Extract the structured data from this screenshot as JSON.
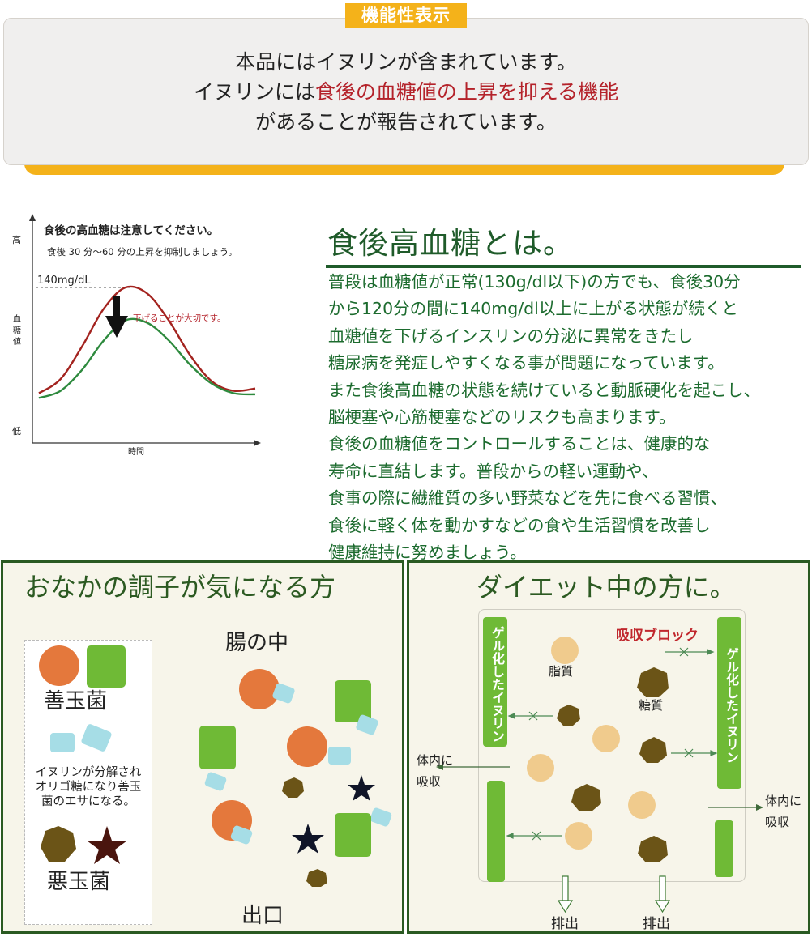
{
  "banner": {
    "tag": "機能性表示",
    "line1": "本品にはイヌリンが含まれています。",
    "line2_prefix": "イヌリンには",
    "line2_highlight": "食後の血糖値の上昇を抑える機能",
    "line3": "があることが報告されています。",
    "highlight_color": "#b4222a",
    "accent_color": "#f4b21a"
  },
  "chart": {
    "heading1": "食後の高血糖は注意してください。",
    "heading2": "食後 30 分〜60 分の上昇を抑制しましょう。",
    "y_high": "高",
    "y_label": "血\n糖\n値",
    "y_low": "低",
    "x_label": "時間",
    "threshold_label": "140mg/dL",
    "arrow_note": "下げることが大切です。"
  },
  "chart_data": {
    "type": "line",
    "xlabel": "時間",
    "ylabel": "血糖値",
    "series": [
      {
        "color": "#a3231f",
        "values": [
          0.1,
          0.22,
          0.5,
          0.82,
          1.0,
          0.95,
          0.72,
          0.42,
          0.2,
          0.12,
          0.14
        ]
      },
      {
        "color": "#2e8a3e",
        "values": [
          0.06,
          0.12,
          0.3,
          0.55,
          0.72,
          0.7,
          0.55,
          0.34,
          0.18,
          0.1,
          0.09
        ]
      }
    ],
    "annotations": [
      "140mg/dL",
      "下げることが大切です。"
    ]
  },
  "article": {
    "title": "食後高血糖とは。",
    "lines": [
      "普段は血糖値が正常(130g/dl以下)の方でも、食後30分",
      "から120分の間に140mg/dl以上に上がる状態が続くと",
      "血糖値を下げるインスリンの分泌に異常をきたし",
      "糖尿病を発症しやすくなる事が問題になっています。",
      "また食後高血糖の状態を続けていると動脈硬化を起こし、",
      "脳梗塞や心筋梗塞などのリスクも高まります。",
      "食後の血糖値をコントロールすることは、健康的な",
      "寿命に直結します。普段からの軽い運動や、",
      "食事の際に繊維質の多い野菜などを先に食べる習慣、",
      "食後に軽く体を動かすなどの食や生活習慣を改善し",
      "健康維持に努めましょう。"
    ],
    "text_color": "#1c6b2e"
  },
  "left_panel": {
    "title": "おなかの調子が気になる方",
    "good": "善玉菌",
    "inulin_note": "イヌリンが分解され\nオリゴ糖になり善玉\n菌のエサになる。",
    "bad": "悪玉菌",
    "intestine": "腸の中",
    "exit": "出口"
  },
  "right_panel": {
    "title": "ダイエット中の方に。",
    "gel_label": "ゲル化したイヌリン",
    "block_label": "吸収ブロック",
    "fat": "脂質",
    "sugar": "糖質",
    "absorb_left": "体内に\n吸収",
    "absorb_right": "体内に\n吸収",
    "excrete": "排出",
    "block_color": "#c0272d"
  }
}
